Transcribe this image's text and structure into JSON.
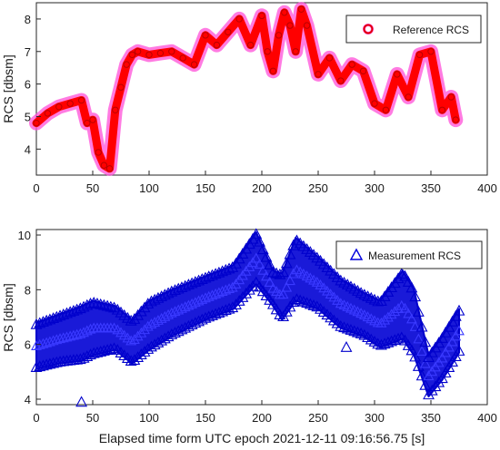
{
  "chart_data": [
    {
      "type": "line",
      "ylabel": "RCS [dbsm]",
      "xlim": [
        0,
        400
      ],
      "ylim": [
        3.2,
        8.5
      ],
      "xticks": [
        0,
        50,
        100,
        150,
        200,
        250,
        300,
        350,
        400
      ],
      "yticks": [
        4,
        5,
        6,
        7,
        8
      ],
      "grid": false,
      "legend_position": "top-right",
      "series": [
        {
          "name": "Reference RCS",
          "color": "#ff0000",
          "halo_color": "#ff4fd8",
          "marker": "circle",
          "x": [
            0,
            10,
            20,
            30,
            40,
            45,
            50,
            55,
            60,
            65,
            70,
            75,
            80,
            85,
            90,
            100,
            110,
            120,
            130,
            140,
            150,
            160,
            170,
            180,
            190,
            200,
            205,
            210,
            215,
            220,
            225,
            230,
            235,
            240,
            250,
            260,
            270,
            280,
            290,
            300,
            310,
            320,
            330,
            340,
            350,
            360,
            368,
            372
          ],
          "y": [
            4.8,
            5.1,
            5.3,
            5.4,
            5.5,
            4.8,
            4.9,
            3.9,
            3.5,
            3.4,
            5.2,
            5.9,
            6.6,
            6.9,
            7.0,
            6.9,
            6.95,
            7.0,
            6.8,
            6.6,
            7.5,
            7.2,
            7.6,
            8.0,
            7.2,
            8.1,
            7.0,
            6.4,
            7.5,
            8.2,
            7.8,
            7.0,
            8.3,
            7.8,
            6.3,
            6.8,
            6.1,
            6.6,
            6.4,
            5.4,
            5.2,
            6.3,
            5.6,
            6.9,
            7.0,
            5.2,
            5.6,
            4.9
          ]
        }
      ]
    },
    {
      "type": "scatter",
      "xlabel": "Elapsed time form UTC epoch 2021-12-11 09:16:56.75 [s]",
      "ylabel": "RCS [dbsm]",
      "xlim": [
        0,
        400
      ],
      "ylim": [
        3.8,
        10.2
      ],
      "xticks": [
        0,
        50,
        100,
        150,
        200,
        250,
        300,
        350,
        400
      ],
      "yticks": [
        4,
        6,
        8,
        10
      ],
      "grid": false,
      "legend_position": "top-right",
      "series": [
        {
          "name": "Measurement RCS",
          "color": "#0000dd",
          "marker": "triangle",
          "band_x": [
            0,
            20,
            40,
            50,
            70,
            85,
            100,
            120,
            150,
            175,
            195,
            210,
            218,
            230,
            250,
            270,
            290,
            305,
            325,
            335,
            348,
            360,
            375
          ],
          "band_upper": [
            6.8,
            7.1,
            7.4,
            7.6,
            7.4,
            6.9,
            7.6,
            8.0,
            8.5,
            8.9,
            10.1,
            8.7,
            8.6,
            9.9,
            9.2,
            8.4,
            7.9,
            7.6,
            8.7,
            8.0,
            5.6,
            6.3,
            7.3
          ],
          "band_lower": [
            5.1,
            5.3,
            5.4,
            5.6,
            5.8,
            5.3,
            5.8,
            6.3,
            6.9,
            7.3,
            8.2,
            7.4,
            6.9,
            7.6,
            7.3,
            6.6,
            6.3,
            5.9,
            6.2,
            5.6,
            4.1,
            4.7,
            5.7
          ],
          "outliers": [
            {
              "x": 40,
              "y": 3.9
            },
            {
              "x": 275,
              "y": 5.9
            }
          ]
        }
      ]
    }
  ]
}
